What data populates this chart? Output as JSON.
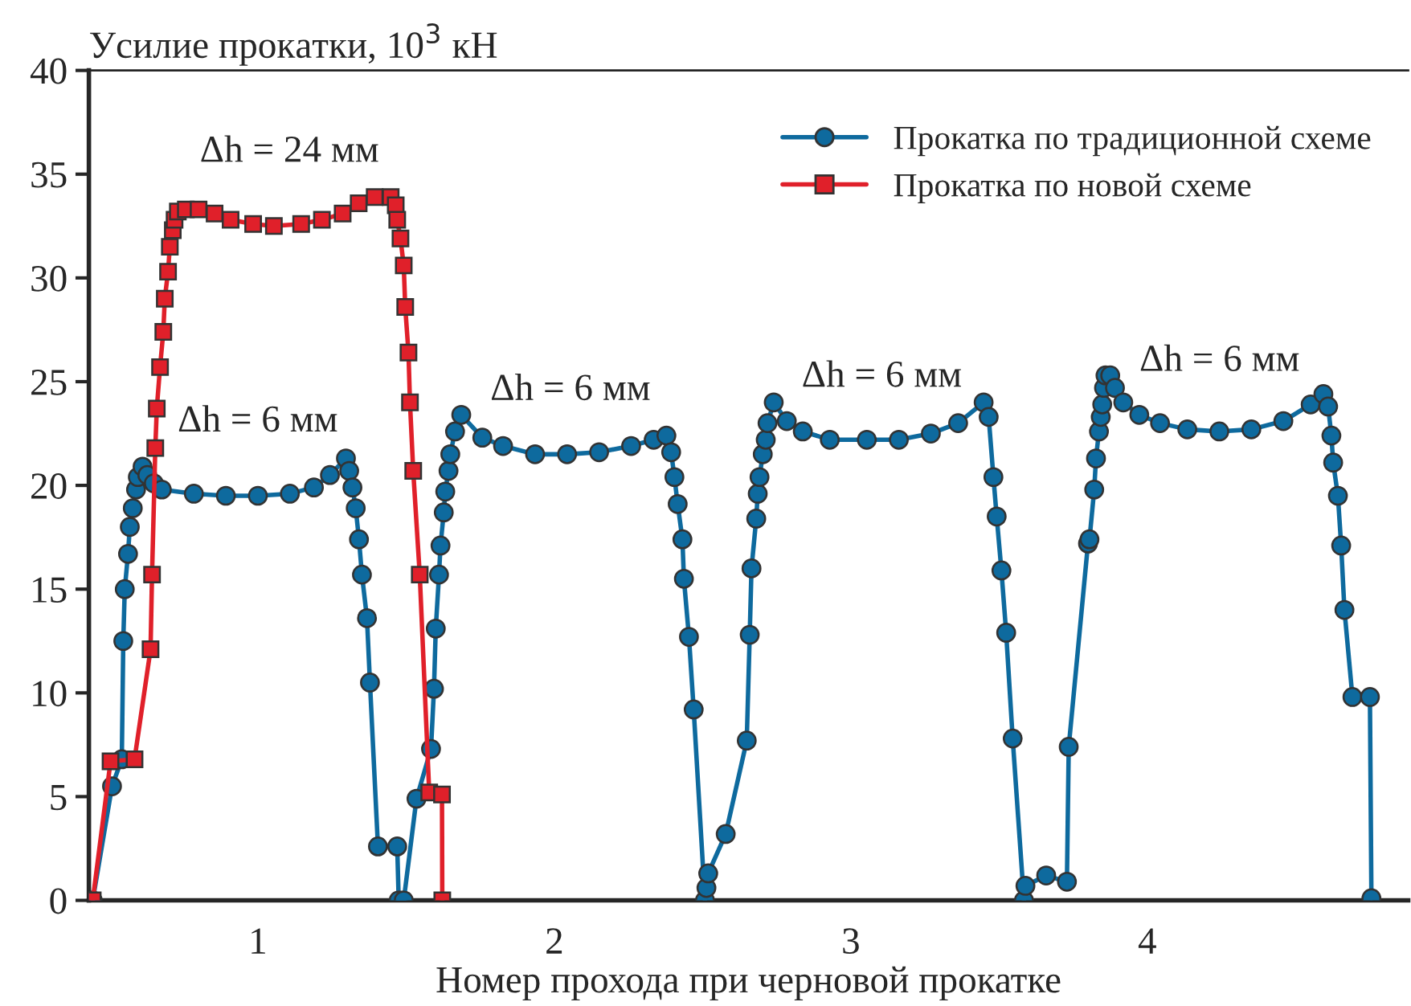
{
  "chart_data": {
    "type": "line",
    "ylabel": "Усилие прокатки, 10$^{3}$ кН",
    "xlabel": "Номер прохода при черновой прокатке",
    "xlim": [
      0.43,
      4.88
    ],
    "xticks": [
      1,
      2,
      3,
      4
    ],
    "ylim": [
      0,
      40
    ],
    "yticks": [
      0,
      5,
      10,
      15,
      20,
      25,
      30,
      35,
      40
    ],
    "grid": false,
    "legend": "top right",
    "series": [
      {
        "name": "Прокатка по традиционной схеме",
        "color": "#0e6a9e",
        "marker": "circle",
        "x": [
          0.443,
          0.508,
          0.541,
          0.546,
          0.551,
          0.562,
          0.568,
          0.578,
          0.589,
          0.595,
          0.611,
          0.627,
          0.649,
          0.676,
          0.784,
          0.892,
          1.0,
          1.108,
          1.189,
          1.243,
          1.297,
          1.308,
          1.319,
          1.33,
          1.341,
          1.351,
          1.368,
          1.378,
          1.405,
          1.47,
          1.475,
          1.492,
          1.535,
          1.584,
          1.594,
          1.6,
          1.611,
          1.616,
          1.627,
          1.632,
          1.643,
          1.649,
          1.665,
          1.686,
          1.757,
          1.827,
          1.935,
          2.043,
          2.151,
          2.259,
          2.335,
          2.378,
          2.394,
          2.405,
          2.416,
          2.432,
          2.437,
          2.454,
          2.47,
          2.508,
          2.513,
          2.519,
          2.578,
          2.649,
          2.659,
          2.665,
          2.681,
          2.686,
          2.692,
          2.703,
          2.713,
          2.719,
          2.74,
          2.784,
          2.838,
          2.929,
          3.054,
          3.162,
          3.27,
          3.362,
          3.448,
          3.465,
          3.481,
          3.492,
          3.508,
          3.524,
          3.546,
          3.584,
          3.589,
          3.659,
          3.729,
          3.735,
          3.8,
          3.805,
          3.821,
          3.827,
          3.837,
          3.843,
          3.848,
          3.854,
          3.859,
          3.875,
          3.891,
          3.919,
          3.973,
          4.043,
          4.135,
          4.243,
          4.351,
          4.459,
          4.551,
          4.594,
          4.61,
          4.621,
          4.627,
          4.643,
          4.654,
          4.665,
          4.692,
          4.751,
          4.756
        ],
        "values": [
          0,
          5.5,
          6.8,
          12.5,
          15,
          16.7,
          18,
          18.9,
          19.8,
          20.4,
          20.9,
          20.5,
          20.1,
          19.8,
          19.6,
          19.5,
          19.5,
          19.6,
          19.9,
          20.5,
          21.3,
          20.7,
          19.9,
          18.9,
          17.4,
          15.7,
          13.6,
          10.5,
          2.6,
          2.6,
          0,
          0,
          4.9,
          7.3,
          10.2,
          13.1,
          15.7,
          17.1,
          18.7,
          19.7,
          20.7,
          21.5,
          22.6,
          23.4,
          22.3,
          21.9,
          21.5,
          21.5,
          21.6,
          21.9,
          22.2,
          22.4,
          21.6,
          20.4,
          19.1,
          17.4,
          15.5,
          12.7,
          9.2,
          0,
          0.6,
          1.3,
          3.2,
          7.7,
          12.8,
          16.0,
          18.4,
          19.6,
          20.4,
          21.5,
          22.2,
          23.0,
          24.0,
          23.1,
          22.6,
          22.2,
          22.2,
          22.2,
          22.5,
          23.0,
          24.0,
          23.3,
          20.4,
          18.5,
          15.9,
          12.9,
          7.8,
          0,
          0.7,
          1.2,
          0.9,
          7.4,
          17.2,
          17.4,
          19.8,
          21.3,
          22.6,
          23.3,
          23.9,
          24.7,
          25.3,
          25.3,
          24.7,
          24.0,
          23.4,
          23.0,
          22.7,
          22.6,
          22.7,
          23.1,
          23.9,
          24.4,
          23.8,
          22.4,
          21.1,
          19.5,
          17.1,
          14.0,
          9.8,
          9.8,
          0.1
        ]
      },
      {
        "name": "Прокатка по новой схеме",
        "color": "#e0202a",
        "marker": "square",
        "x": [
          0.443,
          0.503,
          0.584,
          0.638,
          0.643,
          0.654,
          0.659,
          0.67,
          0.681,
          0.686,
          0.697,
          0.703,
          0.713,
          0.719,
          0.73,
          0.757,
          0.8,
          0.854,
          0.908,
          0.984,
          1.054,
          1.146,
          1.216,
          1.286,
          1.34,
          1.394,
          1.448,
          1.465,
          1.47,
          1.481,
          1.492,
          1.497,
          1.508,
          1.513,
          1.524,
          1.546,
          1.578,
          1.621,
          1.622
        ],
        "values": [
          0,
          6.7,
          6.8,
          12.1,
          15.7,
          21.8,
          23.7,
          25.7,
          27.4,
          29.0,
          30.3,
          31.5,
          32.3,
          32.8,
          33.2,
          33.3,
          33.3,
          33.1,
          32.8,
          32.6,
          32.5,
          32.6,
          32.8,
          33.1,
          33.6,
          33.9,
          33.9,
          33.5,
          32.8,
          31.9,
          30.6,
          28.6,
          26.4,
          24.0,
          20.7,
          15.7,
          5.2,
          5.1,
          0
        ]
      }
    ],
    "annotations": [
      "Δh = 24 мм",
      "Δh = 6 мм",
      "Δh = 6 мм",
      "Δh = 6 мм",
      "Δh = 6 мм"
    ]
  }
}
